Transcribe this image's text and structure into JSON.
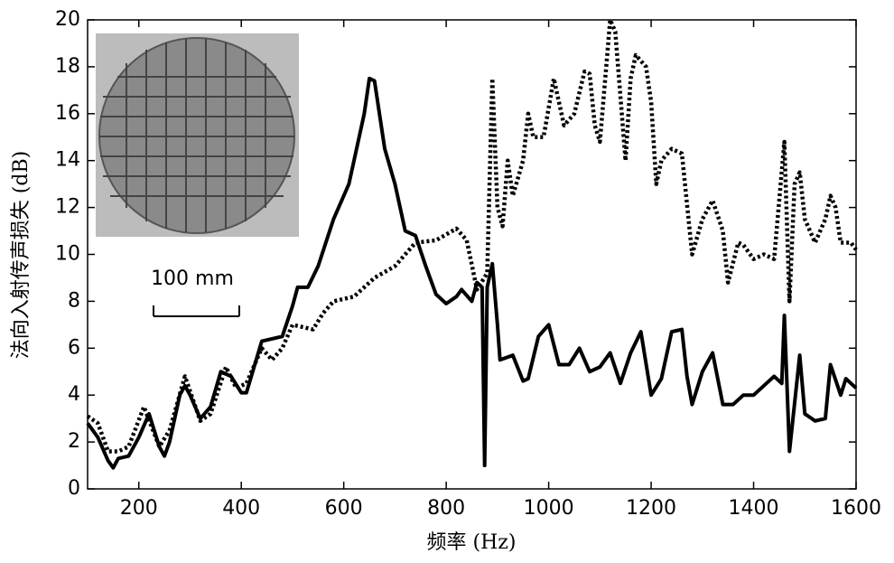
{
  "chart_data": {
    "type": "line",
    "xlabel": "频率 (Hz)",
    "ylabel": "法向入射传声损失 (dB)",
    "annotation": "100 mm",
    "xlim": [
      100,
      1600
    ],
    "xticks": [
      200,
      400,
      600,
      800,
      1000,
      1200,
      1400,
      1600
    ],
    "ylim": [
      0,
      20
    ],
    "yticks": [
      0,
      2,
      4,
      6,
      8,
      10,
      12,
      14,
      16,
      18,
      20
    ],
    "series": [
      {
        "color": "#000000",
        "style": "solid",
        "x": [
          100,
          120,
          140,
          150,
          160,
          180,
          200,
          220,
          240,
          250,
          260,
          280,
          290,
          300,
          320,
          340,
          360,
          380,
          400,
          410,
          440,
          460,
          480,
          500,
          510,
          530,
          550,
          580,
          610,
          640,
          650,
          660,
          680,
          700,
          720,
          740,
          760,
          780,
          800,
          820,
          830,
          850,
          860,
          870,
          875,
          880,
          890,
          900,
          905,
          930,
          950,
          960,
          980,
          1000,
          1020,
          1040,
          1060,
          1080,
          1100,
          1120,
          1140,
          1160,
          1180,
          1200,
          1220,
          1240,
          1260,
          1270,
          1280,
          1300,
          1320,
          1340,
          1360,
          1380,
          1400,
          1420,
          1440,
          1455,
          1460,
          1470,
          1490,
          1500,
          1520,
          1540,
          1550,
          1570,
          1580,
          1600
        ],
        "values": [
          2.8,
          2.2,
          1.2,
          0.9,
          1.3,
          1.4,
          2.2,
          3.2,
          1.8,
          1.4,
          2.0,
          4.0,
          4.4,
          4.0,
          3.0,
          3.5,
          5.0,
          4.8,
          4.1,
          4.1,
          6.3,
          6.4,
          6.5,
          7.8,
          8.6,
          8.6,
          9.5,
          11.5,
          13.0,
          16.0,
          17.5,
          17.4,
          14.5,
          13.0,
          11.0,
          10.8,
          9.5,
          8.3,
          7.9,
          8.2,
          8.5,
          8.0,
          8.8,
          8.6,
          1.0,
          8.6,
          9.6,
          7.0,
          5.5,
          5.7,
          4.6,
          4.7,
          6.5,
          7.0,
          5.3,
          5.3,
          6.0,
          5.0,
          5.2,
          5.8,
          4.5,
          5.8,
          6.7,
          4.0,
          4.7,
          6.7,
          6.8,
          4.8,
          3.6,
          5.0,
          5.8,
          3.6,
          3.6,
          4.0,
          4.0,
          4.4,
          4.8,
          4.5,
          7.4,
          1.6,
          5.7,
          3.2,
          2.9,
          3.0,
          5.3,
          4.0,
          4.7,
          4.3
        ]
      },
      {
        "color": "#000000",
        "style": "dotted",
        "x": [
          100,
          120,
          140,
          160,
          180,
          210,
          240,
          260,
          290,
          320,
          340,
          370,
          390,
          410,
          440,
          460,
          480,
          500,
          540,
          560,
          580,
          620,
          660,
          700,
          740,
          780,
          820,
          840,
          860,
          880,
          890,
          900,
          910,
          920,
          930,
          950,
          960,
          970,
          990,
          1010,
          1030,
          1050,
          1070,
          1080,
          1090,
          1100,
          1120,
          1130,
          1150,
          1160,
          1170,
          1190,
          1200,
          1210,
          1220,
          1240,
          1260,
          1280,
          1300,
          1320,
          1340,
          1350,
          1370,
          1380,
          1400,
          1420,
          1440,
          1460,
          1470,
          1480,
          1490,
          1500,
          1520,
          1540,
          1550,
          1560,
          1570,
          1590,
          1600
        ],
        "values": [
          3.1,
          2.8,
          1.6,
          1.6,
          1.8,
          3.5,
          1.8,
          2.5,
          4.8,
          2.9,
          3.2,
          5.2,
          4.3,
          4.5,
          6.0,
          5.5,
          6.0,
          7.0,
          6.8,
          7.5,
          8.0,
          8.2,
          9.0,
          9.5,
          10.5,
          10.6,
          11.1,
          10.6,
          8.5,
          9.2,
          17.5,
          12.0,
          11.2,
          14.0,
          12.5,
          14.0,
          16.0,
          15.0,
          15.0,
          17.5,
          15.5,
          16.0,
          17.8,
          17.7,
          15.5,
          14.8,
          20.0,
          19.5,
          14.0,
          17.5,
          18.5,
          18.0,
          16.5,
          13.0,
          14.0,
          14.5,
          14.3,
          10.0,
          11.5,
          12.3,
          11.0,
          8.8,
          10.5,
          10.4,
          9.8,
          10.0,
          9.8,
          14.8,
          8.0,
          13.0,
          13.5,
          11.5,
          10.5,
          11.5,
          12.5,
          12.0,
          10.5,
          10.5,
          10.2
        ]
      }
    ]
  }
}
